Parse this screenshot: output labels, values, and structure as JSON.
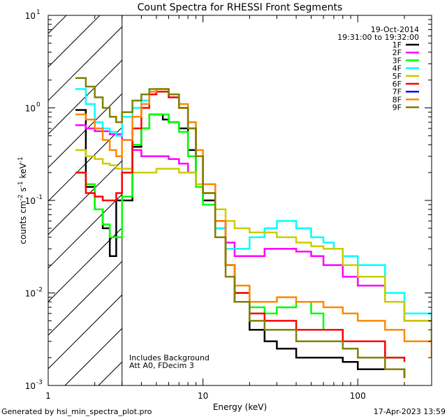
{
  "chart_data": {
    "type": "line",
    "title": "Count Spectra for RHESSI Front Segments",
    "xlabel": "Energy (keV)",
    "ylabel_parts": [
      "counts cm",
      "-2",
      " s",
      "-1",
      " keV",
      "-1"
    ],
    "xscale": "log",
    "yscale": "log",
    "xlim": [
      1,
      300
    ],
    "ylim": [
      0.001,
      10
    ],
    "x_ticks": [
      {
        "value": 1,
        "label": "1"
      },
      {
        "value": 10,
        "label": "10"
      },
      {
        "value": 100,
        "label": "100"
      }
    ],
    "y_ticks": [
      {
        "value": 0.001,
        "base": "10",
        "exp": "-3"
      },
      {
        "value": 0.01,
        "base": "10",
        "exp": "-2"
      },
      {
        "value": 0.1,
        "base": "10",
        "exp": "-1"
      },
      {
        "value": 1,
        "base": "10",
        "exp": "0"
      },
      {
        "value": 10,
        "base": "10",
        "exp": "1"
      }
    ],
    "excluded_region": {
      "xmin": 1,
      "xmax": 3
    },
    "legend_placement": "top-right",
    "header_lines": [
      "19-Oct-2014",
      "19:31:00 to 19:32:00"
    ],
    "annotations": [
      "Includes Background",
      "Att A0, FDecim 3"
    ],
    "series": [
      {
        "name": "1F",
        "color": "#000000",
        "values": [
          [
            1.5,
            0.95
          ],
          [
            1.75,
            0.14
          ],
          [
            2.0,
            0.08
          ],
          [
            2.25,
            0.05
          ],
          [
            2.5,
            0.025
          ],
          [
            2.75,
            0.1
          ],
          [
            3.0,
            0.1
          ],
          [
            3.5,
            0.38
          ],
          [
            4.0,
            0.6
          ],
          [
            4.5,
            0.85
          ],
          [
            5.0,
            0.85
          ],
          [
            5.5,
            0.75
          ],
          [
            6.0,
            0.7
          ],
          [
            7.0,
            0.6
          ],
          [
            8.0,
            0.35
          ],
          [
            9.0,
            0.15
          ],
          [
            10.0,
            0.1
          ],
          [
            12.0,
            0.05
          ],
          [
            14.0,
            0.02
          ],
          [
            16.0,
            0.008
          ],
          [
            20.0,
            0.004
          ],
          [
            25.0,
            0.003
          ],
          [
            30.0,
            0.0025
          ],
          [
            40.0,
            0.002
          ],
          [
            60.0,
            0.002
          ],
          [
            80.0,
            0.0018
          ],
          [
            100.0,
            0.0015
          ],
          [
            150.0,
            0.0015
          ],
          [
            200.0,
            0.0012
          ]
        ]
      },
      {
        "name": "2F",
        "color": "#ff00ff",
        "values": [
          [
            1.5,
            0.65
          ],
          [
            1.75,
            0.6
          ],
          [
            2.0,
            0.56
          ],
          [
            2.5,
            0.52
          ],
          [
            3.0,
            0.45
          ],
          [
            3.5,
            0.35
          ],
          [
            4.0,
            0.3
          ],
          [
            5.0,
            0.3
          ],
          [
            6.0,
            0.28
          ],
          [
            7.0,
            0.25
          ],
          [
            8.0,
            0.2
          ],
          [
            9.0,
            0.15
          ],
          [
            10.0,
            0.12
          ],
          [
            12.0,
            0.06
          ],
          [
            14.0,
            0.035
          ],
          [
            16.0,
            0.025
          ],
          [
            20.0,
            0.025
          ],
          [
            25.0,
            0.03
          ],
          [
            30.0,
            0.03
          ],
          [
            40.0,
            0.028
          ],
          [
            50.0,
            0.025
          ],
          [
            60.0,
            0.02
          ],
          [
            80.0,
            0.015
          ],
          [
            100.0,
            0.012
          ],
          [
            150.0,
            0.008
          ],
          [
            200.0,
            0.005
          ],
          [
            300.0,
            0.003
          ]
        ]
      },
      {
        "name": "3F",
        "color": "#00ff00",
        "values": [
          [
            1.5,
            0.2
          ],
          [
            1.75,
            0.15
          ],
          [
            2.0,
            0.08
          ],
          [
            2.25,
            0.055
          ],
          [
            2.5,
            0.04
          ],
          [
            2.75,
            0.04
          ],
          [
            3.0,
            0.11
          ],
          [
            3.5,
            0.4
          ],
          [
            4.0,
            0.6
          ],
          [
            4.5,
            0.85
          ],
          [
            5.0,
            0.85
          ],
          [
            6.0,
            0.7
          ],
          [
            7.0,
            0.55
          ],
          [
            8.0,
            0.3
          ],
          [
            9.0,
            0.14
          ],
          [
            10.0,
            0.09
          ],
          [
            12.0,
            0.05
          ],
          [
            14.0,
            0.02
          ],
          [
            16.0,
            0.01
          ],
          [
            20.0,
            0.007
          ],
          [
            25.0,
            0.006
          ],
          [
            30.0,
            0.007
          ],
          [
            40.0,
            0.008
          ],
          [
            50.0,
            0.006
          ],
          [
            60.0,
            0.004
          ],
          [
            80.0,
            0.003
          ],
          [
            100.0,
            0.003
          ],
          [
            150.0,
            0.002
          ],
          [
            200.0,
            0.002
          ]
        ]
      },
      {
        "name": "4F",
        "color": "#00ffff",
        "values": [
          [
            1.5,
            1.6
          ],
          [
            1.75,
            1.1
          ],
          [
            2.0,
            0.7
          ],
          [
            2.25,
            0.6
          ],
          [
            2.5,
            0.55
          ],
          [
            2.75,
            0.5
          ],
          [
            3.0,
            0.8
          ],
          [
            3.5,
            1.0
          ],
          [
            4.0,
            1.2
          ],
          [
            4.5,
            1.4
          ],
          [
            5.0,
            1.5
          ],
          [
            6.0,
            1.3
          ],
          [
            7.0,
            1.0
          ],
          [
            8.0,
            0.7
          ],
          [
            9.0,
            0.3
          ],
          [
            10.0,
            0.15
          ],
          [
            12.0,
            0.05
          ],
          [
            14.0,
            0.03
          ],
          [
            16.0,
            0.03
          ],
          [
            20.0,
            0.04
          ],
          [
            25.0,
            0.05
          ],
          [
            30.0,
            0.06
          ],
          [
            40.0,
            0.05
          ],
          [
            50.0,
            0.04
          ],
          [
            60.0,
            0.035
          ],
          [
            70.0,
            0.03
          ],
          [
            80.0,
            0.025
          ],
          [
            100.0,
            0.02
          ],
          [
            150.0,
            0.01
          ],
          [
            200.0,
            0.006
          ],
          [
            300.0,
            0.003
          ]
        ]
      },
      {
        "name": "5F",
        "color": "#cccc00",
        "values": [
          [
            1.5,
            0.35
          ],
          [
            1.75,
            0.3
          ],
          [
            2.0,
            0.28
          ],
          [
            2.25,
            0.25
          ],
          [
            2.5,
            0.24
          ],
          [
            2.75,
            0.22
          ],
          [
            3.0,
            0.22
          ],
          [
            3.5,
            0.2
          ],
          [
            4.0,
            0.2
          ],
          [
            5.0,
            0.22
          ],
          [
            6.0,
            0.22
          ],
          [
            7.0,
            0.2
          ],
          [
            8.0,
            0.2
          ],
          [
            9.0,
            0.15
          ],
          [
            10.0,
            0.12
          ],
          [
            12.0,
            0.08
          ],
          [
            14.0,
            0.06
          ],
          [
            16.0,
            0.05
          ],
          [
            20.0,
            0.045
          ],
          [
            25.0,
            0.045
          ],
          [
            30.0,
            0.04
          ],
          [
            40.0,
            0.035
          ],
          [
            50.0,
            0.032
          ],
          [
            60.0,
            0.03
          ],
          [
            80.0,
            0.02
          ],
          [
            100.0,
            0.015
          ],
          [
            150.0,
            0.008
          ],
          [
            200.0,
            0.005
          ],
          [
            300.0,
            0.003
          ]
        ]
      },
      {
        "name": "6F",
        "color": "#ff0000",
        "values": [
          [
            1.5,
            0.2
          ],
          [
            1.75,
            0.12
          ],
          [
            2.0,
            0.11
          ],
          [
            2.25,
            0.1
          ],
          [
            2.5,
            0.1
          ],
          [
            2.75,
            0.12
          ],
          [
            3.0,
            0.2
          ],
          [
            3.5,
            0.6
          ],
          [
            4.0,
            1.0
          ],
          [
            4.5,
            1.4
          ],
          [
            5.0,
            1.5
          ],
          [
            6.0,
            1.3
          ],
          [
            7.0,
            1.0
          ],
          [
            8.0,
            0.6
          ],
          [
            9.0,
            0.3
          ],
          [
            10.0,
            0.15
          ],
          [
            12.0,
            0.06
          ],
          [
            14.0,
            0.02
          ],
          [
            16.0,
            0.01
          ],
          [
            20.0,
            0.006
          ],
          [
            25.0,
            0.005
          ],
          [
            30.0,
            0.005
          ],
          [
            40.0,
            0.004
          ],
          [
            60.0,
            0.004
          ],
          [
            80.0,
            0.003
          ],
          [
            100.0,
            0.003
          ],
          [
            150.0,
            0.002
          ],
          [
            200.0,
            0.0018
          ]
        ]
      },
      {
        "name": "7F",
        "color": "#0000ff",
        "values": []
      },
      {
        "name": "8F",
        "color": "#ff8800",
        "values": [
          [
            1.5,
            0.85
          ],
          [
            1.75,
            0.75
          ],
          [
            2.0,
            0.6
          ],
          [
            2.25,
            0.45
          ],
          [
            2.5,
            0.35
          ],
          [
            2.75,
            0.3
          ],
          [
            3.0,
            0.45
          ],
          [
            3.5,
            0.8
          ],
          [
            4.0,
            1.1
          ],
          [
            4.5,
            1.5
          ],
          [
            5.0,
            1.6
          ],
          [
            6.0,
            1.4
          ],
          [
            7.0,
            1.1
          ],
          [
            8.0,
            0.7
          ],
          [
            9.0,
            0.35
          ],
          [
            10.0,
            0.15
          ],
          [
            12.0,
            0.06
          ],
          [
            14.0,
            0.02
          ],
          [
            16.0,
            0.012
          ],
          [
            20.0,
            0.008
          ],
          [
            25.0,
            0.008
          ],
          [
            30.0,
            0.009
          ],
          [
            40.0,
            0.008
          ],
          [
            60.0,
            0.007
          ],
          [
            80.0,
            0.006
          ],
          [
            100.0,
            0.005
          ],
          [
            150.0,
            0.004
          ],
          [
            200.0,
            0.003
          ],
          [
            300.0,
            0.002
          ]
        ]
      },
      {
        "name": "9F",
        "color": "#808000",
        "values": [
          [
            1.5,
            2.1
          ],
          [
            1.75,
            1.7
          ],
          [
            2.0,
            1.3
          ],
          [
            2.25,
            1.0
          ],
          [
            2.5,
            0.8
          ],
          [
            2.75,
            0.7
          ],
          [
            3.0,
            0.9
          ],
          [
            3.5,
            1.2
          ],
          [
            4.0,
            1.4
          ],
          [
            4.5,
            1.6
          ],
          [
            5.0,
            1.6
          ],
          [
            6.0,
            1.4
          ],
          [
            7.0,
            1.0
          ],
          [
            8.0,
            0.6
          ],
          [
            9.0,
            0.3
          ],
          [
            10.0,
            0.12
          ],
          [
            12.0,
            0.04
          ],
          [
            14.0,
            0.015
          ],
          [
            16.0,
            0.008
          ],
          [
            20.0,
            0.005
          ],
          [
            25.0,
            0.004
          ],
          [
            30.0,
            0.004
          ],
          [
            40.0,
            0.003
          ],
          [
            60.0,
            0.003
          ],
          [
            80.0,
            0.0025
          ],
          [
            100.0,
            0.002
          ],
          [
            150.0,
            0.0015
          ],
          [
            200.0,
            0.0012
          ]
        ]
      }
    ]
  },
  "footer": {
    "left": "Generated by hsi_min_spectra_plot.pro",
    "right": "17-Apr-2023 13:59"
  }
}
